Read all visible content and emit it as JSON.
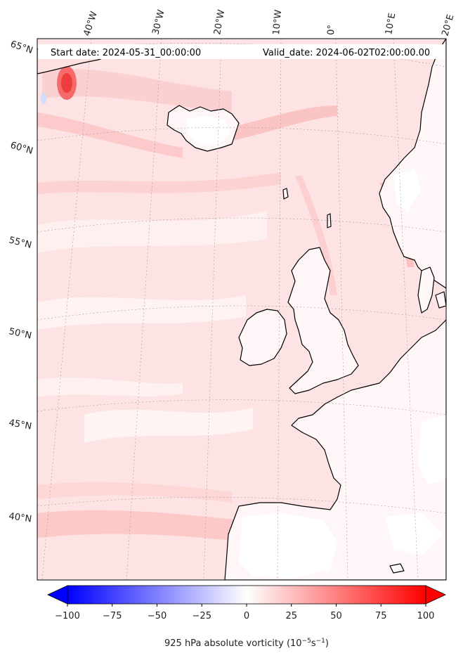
{
  "header": {
    "start_date": "Start date: 2024-05-31_00:00:00",
    "valid_date": "Valid_date: 2024-06-02T02:00:00.00"
  },
  "map": {
    "longitude_labels": [
      "40°W",
      "30°W",
      "20°W",
      "10°W",
      "0°",
      "10°E",
      "20°E"
    ],
    "latitude_labels": [
      "65°N",
      "60°N",
      "55°N",
      "50°N",
      "45°N",
      "40°N"
    ]
  },
  "colorbar": {
    "ticks": [
      "−100",
      "−75",
      "−50",
      "−25",
      "0",
      "25",
      "50",
      "75",
      "100"
    ],
    "min": -100,
    "max": 100,
    "label": "925 hPa absolute vorticity (10",
    "label_sup1": "−5",
    "label_mid": "s",
    "label_sup2": "−1",
    "label_end": ")",
    "colormap": "bwr",
    "extend": "both"
  },
  "colors": {
    "background_field": "#fde4e4",
    "coast": "#000000",
    "grid": "#9a9a9a",
    "negative_end": "#0000ff",
    "positive_end": "#ff0000"
  }
}
